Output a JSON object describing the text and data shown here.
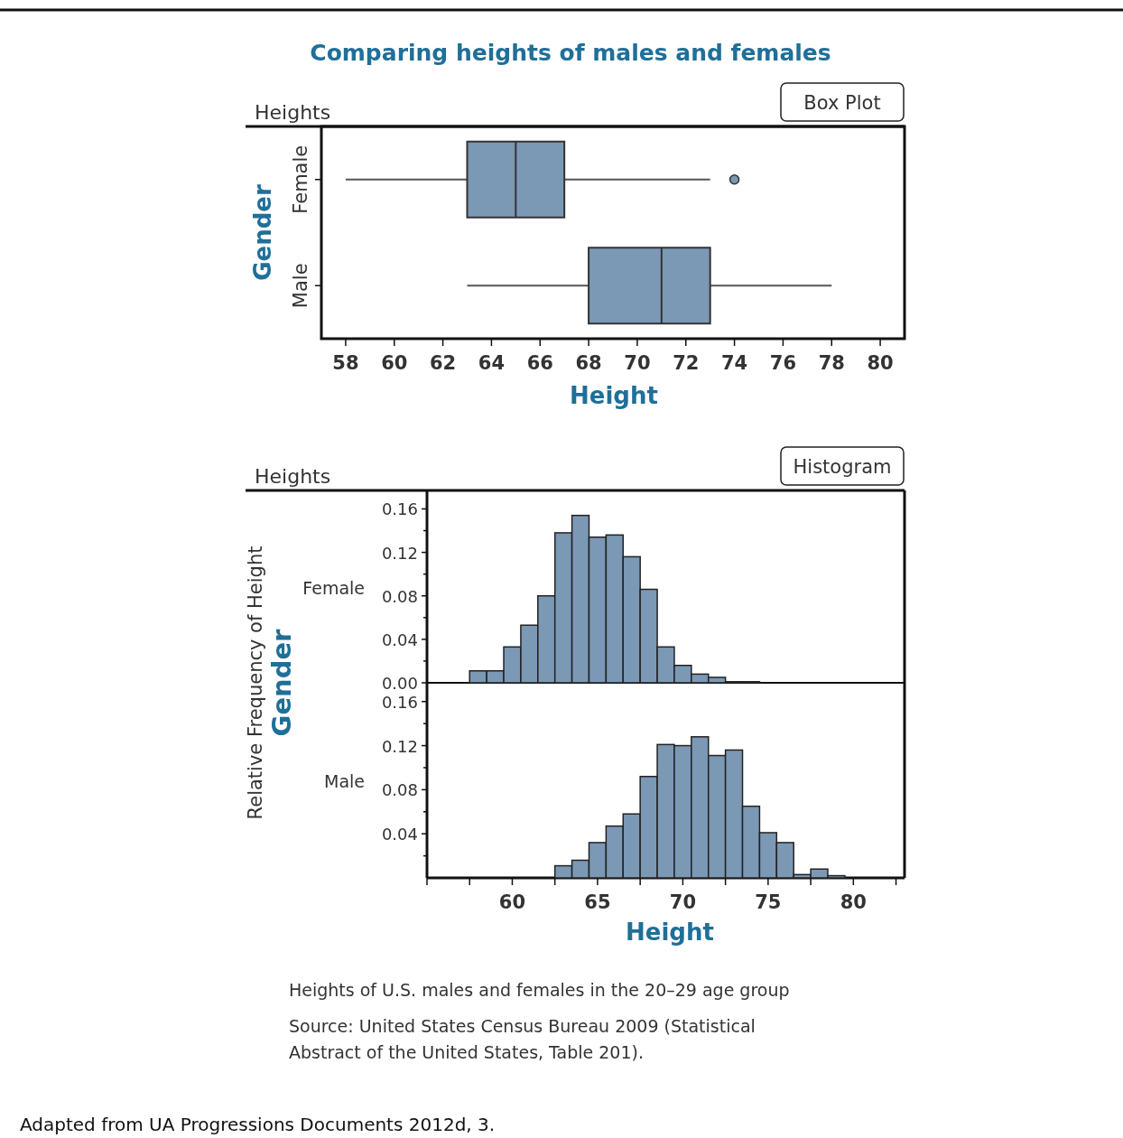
{
  "chart_data": [
    {
      "type": "box",
      "title": "Comparing heights of males and females",
      "subtitle": "Heights",
      "annotations": [
        "Box Plot"
      ],
      "orientation": "horizontal",
      "ylabel": "Gender",
      "xlabel": "Height",
      "categories": [
        "Female",
        "Male"
      ],
      "xlim": [
        57,
        81
      ],
      "xticks": [
        58,
        60,
        62,
        64,
        66,
        68,
        70,
        72,
        74,
        76,
        78,
        80
      ],
      "series": [
        {
          "color": "#7b98b5",
          "boxes": [
            {
              "low": 58,
              "q1": 63,
              "median": 65,
              "q3": 67,
              "high": 73,
              "outliers": [
                74
              ]
            },
            {
              "low": 63,
              "q1": 68,
              "median": 71,
              "q3": 73,
              "high": 78
            }
          ]
        }
      ]
    },
    {
      "type": "histogram",
      "subtitle": "Heights",
      "annotations": [
        "Histogram"
      ],
      "ylabel": "Relative Frequency of Height",
      "xlim": [
        55,
        83
      ],
      "ylim": [
        0,
        0.177
      ],
      "yticks": [
        {
          "value": 0,
          "label": "0.00"
        },
        {
          "value": 0.02,
          "label": null
        },
        0.04,
        {
          "value": 0.06,
          "label": null
        },
        0.08,
        {
          "value": 0.1,
          "label": null
        },
        0.12,
        {
          "value": 0.14,
          "label": null
        },
        0.16
      ],
      "tick_labels": "y",
      "bins": [
        57.5,
        58.5,
        59.5,
        60.5,
        61.5,
        62.5,
        63.5,
        64.5,
        65.5,
        66.5,
        67.5,
        68.5,
        69.5,
        70.5,
        71.5,
        72.5,
        73.5,
        74.5
      ],
      "series": [
        {
          "name": "Female",
          "color": "#7b98b5",
          "values": [
            0.011,
            0.011,
            0.033,
            0.053,
            0.08,
            0.138,
            0.154,
            0.134,
            0.136,
            0.116,
            0.086,
            0.033,
            0.016,
            0.008,
            0.005,
            0.001,
            0.001
          ]
        }
      ]
    },
    {
      "type": "histogram",
      "ylabel": "Gender",
      "xlabel": "Height",
      "xlim": [
        55,
        83
      ],
      "xticks": [
        {
          "value": 55,
          "label": null
        },
        {
          "value": 57.5,
          "label": null
        },
        60,
        {
          "value": 62.5,
          "label": null
        },
        65,
        {
          "value": 67.5,
          "label": null
        },
        70,
        {
          "value": 72.5,
          "label": null
        },
        75,
        {
          "value": 77.5,
          "label": null
        },
        80,
        {
          "value": 82.5,
          "label": null
        }
      ],
      "ylim": [
        0,
        0.177
      ],
      "yticks": [
        {
          "value": 0.02,
          "label": null
        },
        0.04,
        {
          "value": 0.06,
          "label": null
        },
        0.08,
        {
          "value": 0.1,
          "label": null
        },
        0.12,
        {
          "value": 0.14,
          "label": null
        },
        0.16
      ],
      "bins": [
        62.5,
        63.5,
        64.5,
        65.5,
        66.5,
        67.5,
        68.5,
        69.5,
        70.5,
        71.5,
        72.5,
        73.5,
        74.5,
        75.5,
        76.5,
        77.5,
        78.5,
        79.5
      ],
      "series": [
        {
          "name": "Male",
          "color": "#7b98b5",
          "values": [
            0.011,
            0.016,
            0.032,
            0.047,
            0.058,
            0.092,
            0.121,
            0.12,
            0.128,
            0.111,
            0.116,
            0.065,
            0.041,
            0.032,
            0.003,
            0.008,
            0.002
          ]
        }
      ],
      "annotations": [
        "Heights of U.S. males and females in the 20–29 age group",
        "Source: United States Census Bureau 2009 (Statistical Abstract of the United States, Table 201).",
        "Adapted from UA Progressions Documents 2012d, 3."
      ]
    }
  ]
}
